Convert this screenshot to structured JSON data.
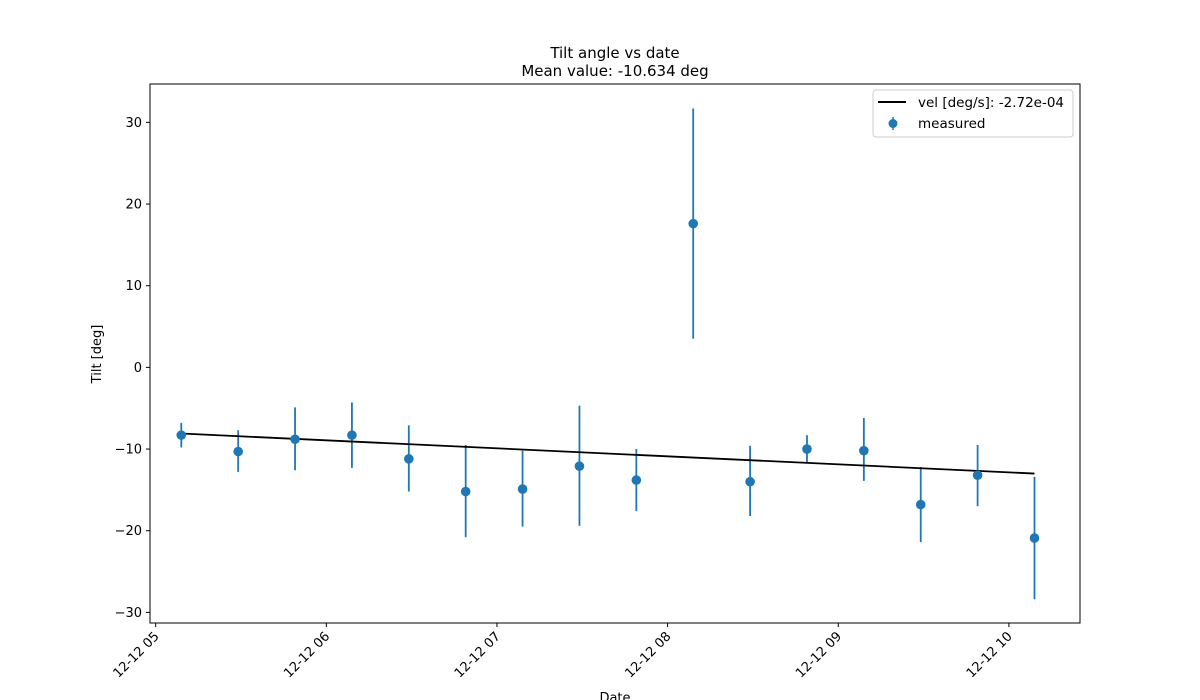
{
  "chart_data": {
    "type": "scatter",
    "title": "Tilt angle vs date",
    "subtitle": "Mean value: -10.634 deg",
    "xlabel": "Date",
    "ylabel": "Tilt [deg]",
    "x_type": "date",
    "xlim": [
      "2024-12-12 04:58",
      "2024-12-12 10:25"
    ],
    "ylim": [
      -31.3,
      34.7
    ],
    "x_ticks": [
      "2024-12-12 05:00",
      "2024-12-12 06:00",
      "2024-12-12 07:00",
      "2024-12-12 08:00",
      "2024-12-12 09:00",
      "2024-12-12 10:00"
    ],
    "x_tick_labels": [
      "12-12 05",
      "12-12 06",
      "12-12 07",
      "12-12 08",
      "12-12 09",
      "12-12 10"
    ],
    "y_ticks": [
      -30,
      -20,
      -10,
      0,
      10,
      20,
      30
    ],
    "y_tick_labels": [
      "−30",
      "−20",
      "−10",
      "0",
      "10",
      "20",
      "30"
    ],
    "grid": false,
    "legend_position": "top-right",
    "colors": {
      "measured": "#1f77b4",
      "fit": "#000000"
    },
    "series": [
      {
        "name": "measured",
        "type": "errorbar",
        "x": [
          "2024-12-12 05:09",
          "2024-12-12 05:29",
          "2024-12-12 05:49",
          "2024-12-12 06:09",
          "2024-12-12 06:29",
          "2024-12-12 06:49",
          "2024-12-12 07:09",
          "2024-12-12 07:29",
          "2024-12-12 07:49",
          "2024-12-12 08:09",
          "2024-12-12 08:29",
          "2024-12-12 08:49",
          "2024-12-12 09:09",
          "2024-12-12 09:29",
          "2024-12-12 09:49",
          "2024-12-12 10:09"
        ],
        "y": [
          -8.3,
          -10.3,
          -8.8,
          -8.3,
          -11.2,
          -15.2,
          -14.9,
          -12.1,
          -13.8,
          17.6,
          -14.0,
          -10.0,
          -10.2,
          -16.8,
          -13.2,
          -20.9
        ],
        "err_low": [
          -9.8,
          -12.8,
          -12.6,
          -12.3,
          -15.2,
          -20.8,
          -19.5,
          -19.4,
          -17.6,
          3.5,
          -18.2,
          -11.7,
          -13.9,
          -21.4,
          -17.0,
          -28.4
        ],
        "err_high": [
          -6.8,
          -7.7,
          -4.9,
          -4.3,
          -7.1,
          -9.5,
          -10.2,
          -4.7,
          -10.0,
          31.7,
          -9.6,
          -8.3,
          -6.2,
          -12.2,
          -9.5,
          -13.4
        ]
      },
      {
        "name": "vel [deg/s]: -2.72e-04",
        "type": "line",
        "x": [
          "2024-12-12 05:09",
          "2024-12-12 10:09"
        ],
        "y": [
          -8.1,
          -13.0
        ]
      }
    ]
  }
}
